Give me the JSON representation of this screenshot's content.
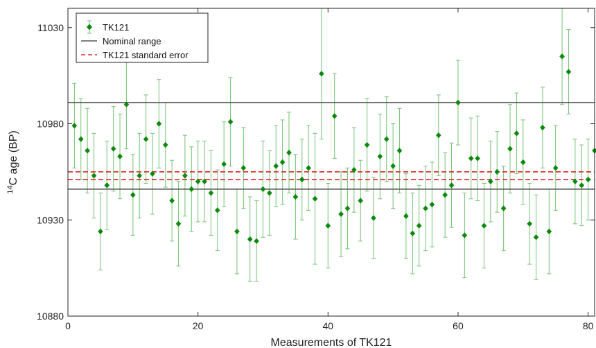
{
  "chart_data": {
    "type": "scatter",
    "xlabel": "Measurements of TK121",
    "ylabel_main": "C age (BP)",
    "ylabel_sup": "14",
    "xlim": [
      0,
      81
    ],
    "ylim": [
      10880,
      11040
    ],
    "xticks": [
      0,
      20,
      40,
      60,
      80
    ],
    "yticks": [
      10880,
      10930,
      10980,
      11030
    ],
    "grid": false,
    "legend_position": "top-left",
    "colors": {
      "points": "#0a8a0a",
      "errorbars": "#7fc77f",
      "nominal": "#555555",
      "stderr": "#e23030"
    },
    "series": [
      {
        "name": "TK121",
        "x": [
          1,
          2,
          3,
          4,
          5,
          6,
          7,
          8,
          9,
          10,
          11,
          12,
          13,
          14,
          15,
          16,
          17,
          18,
          19,
          20,
          21,
          22,
          23,
          24,
          25,
          26,
          27,
          28,
          29,
          30,
          31,
          32,
          33,
          34,
          35,
          36,
          37,
          38,
          39,
          40,
          41,
          42,
          43,
          44,
          45,
          46,
          47,
          48,
          49,
          50,
          51,
          52,
          53,
          54,
          55,
          56,
          57,
          58,
          59,
          60,
          61,
          62,
          63,
          64,
          65,
          66,
          67,
          68,
          69,
          70,
          71,
          72,
          73,
          74,
          75,
          76,
          77,
          78,
          79,
          80,
          81
        ],
        "y": [
          10979,
          10972,
          10966,
          10953,
          10924,
          10948,
          10967,
          10963,
          10990,
          10943,
          10953,
          10972,
          10954,
          10980,
          10969,
          10940,
          10928,
          10953,
          10946,
          10950,
          10950,
          10944,
          10935,
          10959,
          10981,
          10924,
          10957,
          10920,
          10919,
          10946,
          10944,
          10958,
          10960,
          10965,
          10942,
          10951,
          10957,
          10941,
          11006,
          10927,
          10984,
          10933,
          10936,
          10956,
          10940,
          10969,
          10931,
          10963,
          10972,
          10958,
          10966,
          10932,
          10923,
          10927,
          10936,
          10938,
          10974,
          10943,
          10948,
          10991,
          10922,
          10962,
          10962,
          10927,
          10950,
          10955,
          10936,
          10967,
          10975,
          10960,
          10928,
          10921,
          10978,
          10924,
          10957,
          11015,
          11007,
          10950,
          10948,
          10951,
          10966
        ],
        "err": [
          22,
          21,
          22,
          22,
          20,
          23,
          22,
          22,
          23,
          21,
          22,
          23,
          21,
          23,
          22,
          21,
          22,
          21,
          22,
          21,
          21,
          22,
          21,
          22,
          23,
          22,
          21,
          22,
          21,
          25,
          22,
          21,
          22,
          21,
          22,
          21,
          22,
          34,
          34,
          22,
          22,
          22,
          21,
          22,
          21,
          24,
          21,
          22,
          22,
          22,
          22,
          22,
          21,
          21,
          22,
          22,
          21,
          22,
          22,
          22,
          22,
          21,
          22,
          22,
          21,
          21,
          22,
          23,
          21,
          22,
          21,
          22,
          21,
          22,
          22,
          25,
          22,
          22,
          21,
          21,
          21
        ]
      }
    ],
    "nominal_range": [
      10946,
      10991
    ],
    "standard_error": [
      10951,
      10955
    ],
    "legend": [
      {
        "label": "TK121",
        "style": "marker"
      },
      {
        "label": "Nominal range",
        "style": "solid"
      },
      {
        "label": "TK121 standard error",
        "style": "dashed"
      }
    ]
  }
}
